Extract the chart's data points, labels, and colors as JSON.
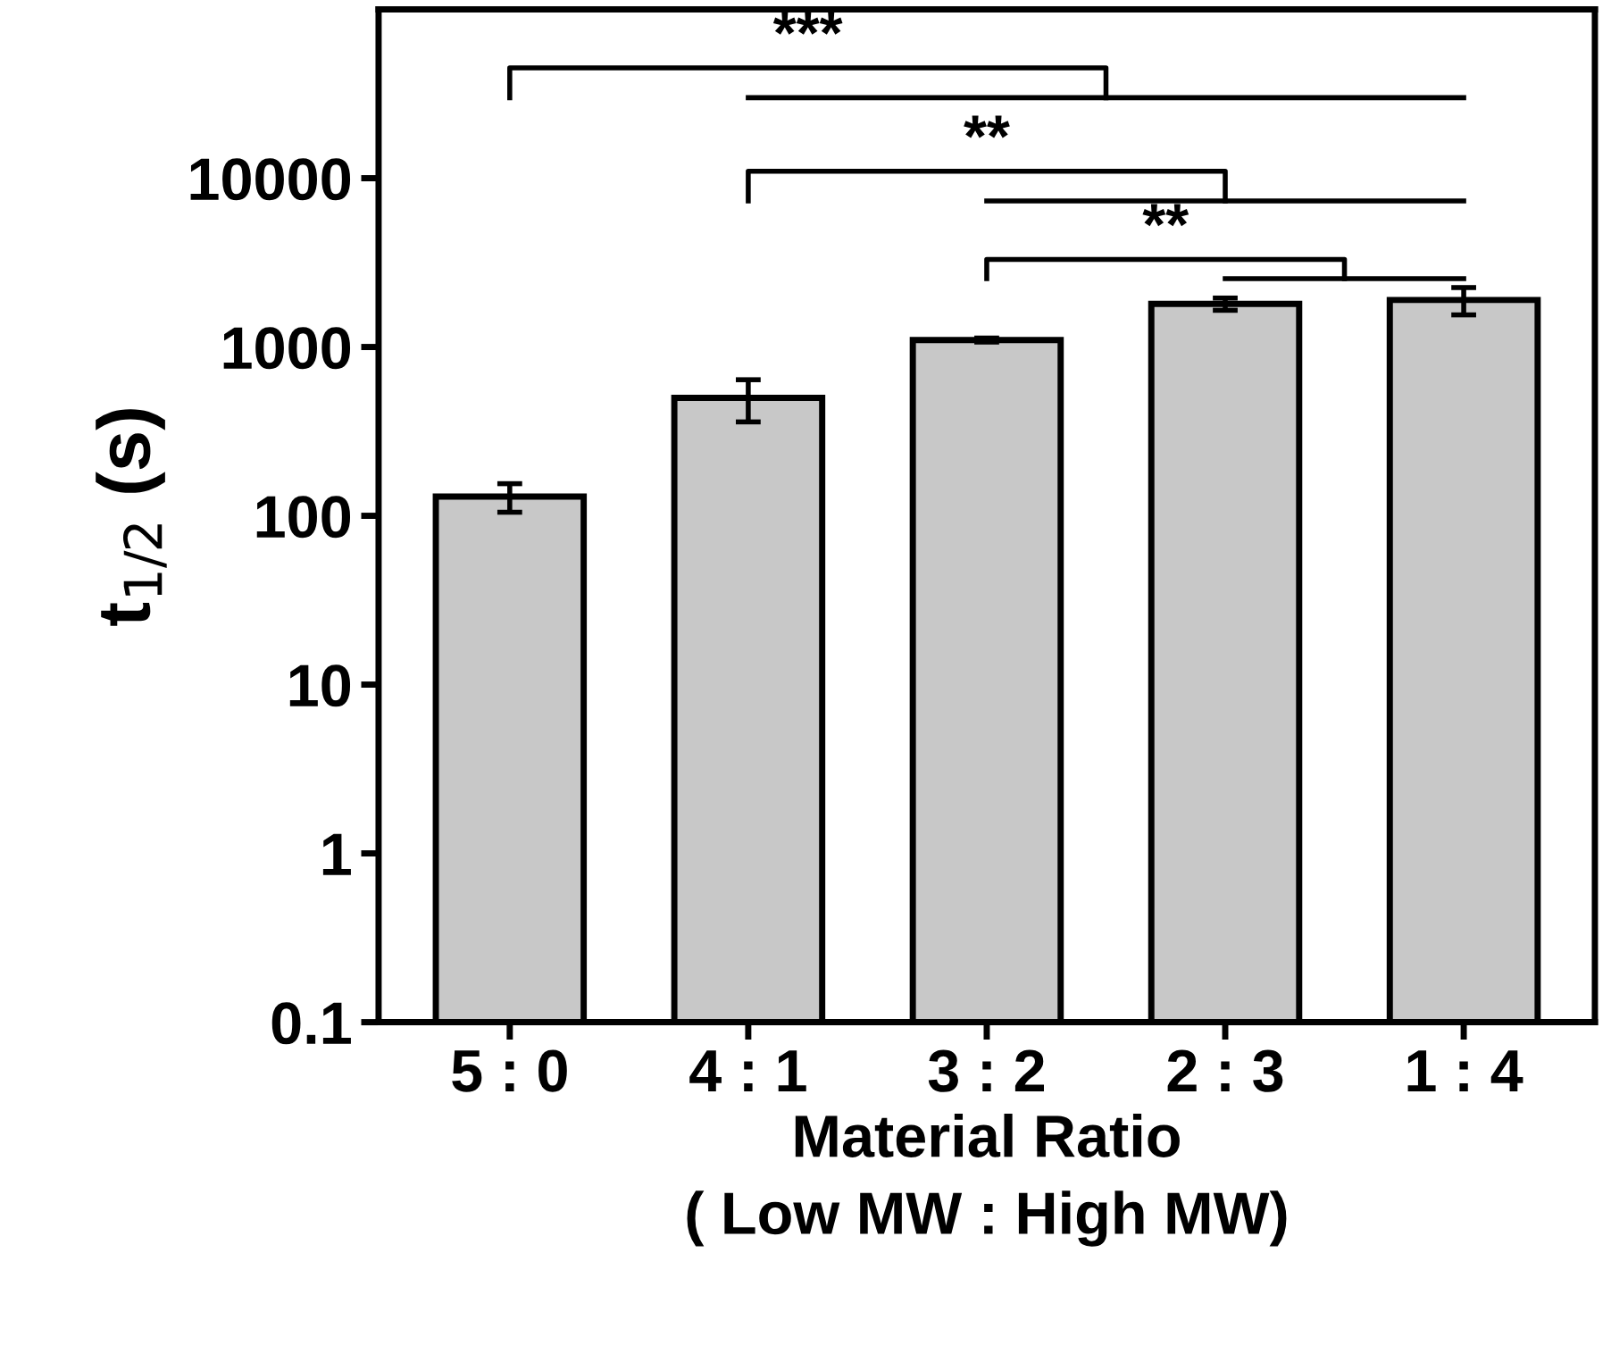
{
  "chart_data": {
    "type": "bar",
    "xlabel": "Material Ratio\n( Low MW : High MW)",
    "ylabel": "t$_{1/2}$ (s)",
    "categories": [
      "5 : 0",
      "4 : 1",
      "3 : 2",
      "2 : 3",
      "1 : 4"
    ],
    "values": [
      130,
      500,
      1100,
      1800,
      1900
    ],
    "errors": [
      25,
      140,
      30,
      150,
      350
    ],
    "color": "#c8c8c8",
    "log": true,
    "ylim": [
      0.1,
      100000
    ],
    "yticks": [
      0.1,
      1,
      10,
      100,
      1000,
      10000
    ],
    "annotations": [
      "***",
      "**",
      "**"
    ],
    "grid": false
  }
}
